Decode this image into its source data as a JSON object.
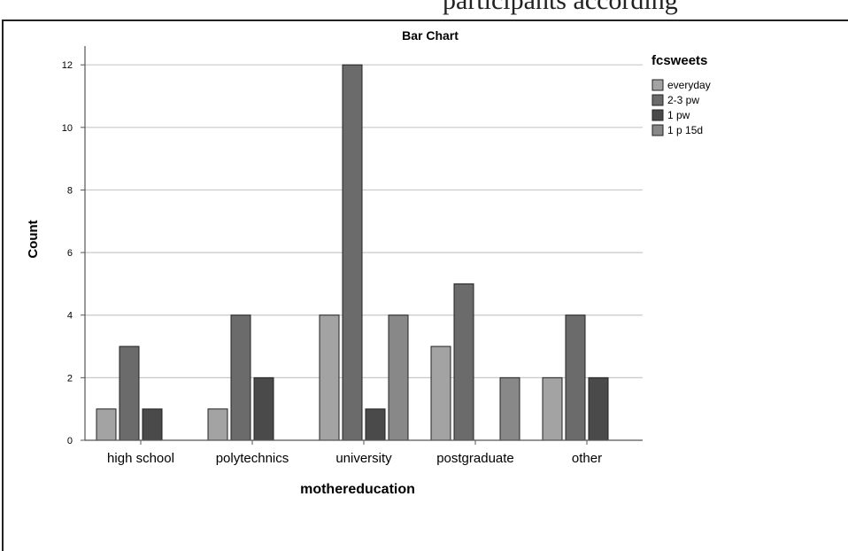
{
  "page": {
    "header_fragment": "participants according"
  },
  "chart_data": {
    "type": "bar",
    "title": "Bar Chart",
    "xlabel": "mothereducation",
    "ylabel": "Count",
    "categories": [
      "high school",
      "polytechnics",
      "university",
      "postgraduate",
      "other"
    ],
    "ylim": [
      0,
      12.6
    ],
    "yticks": [
      0,
      2,
      4,
      6,
      8,
      10,
      12
    ],
    "grid": true,
    "legend_title": "fcsweets",
    "legend_position": "top-right",
    "series": [
      {
        "name": "everyday",
        "color": "#a3a3a3",
        "values": [
          1,
          1,
          4,
          3,
          2
        ]
      },
      {
        "name": "2-3 pw",
        "color": "#6b6b6b",
        "values": [
          3,
          4,
          12,
          5,
          4
        ]
      },
      {
        "name": "1 pw",
        "color": "#4a4a4a",
        "values": [
          1,
          2,
          1,
          0,
          2
        ]
      },
      {
        "name": "1 p 15d",
        "color": "#888888",
        "values": [
          0,
          0,
          4,
          2,
          0
        ]
      }
    ]
  }
}
